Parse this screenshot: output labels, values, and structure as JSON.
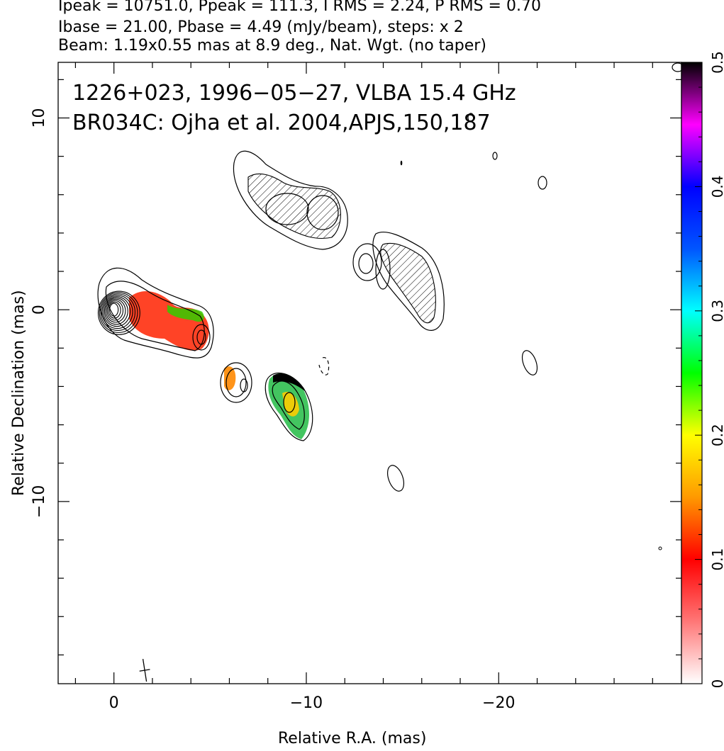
{
  "header": {
    "line1": "Ipeak = 10751.0, Ppeak = 111.3, I RMS = 2.24, P RMS = 0.70",
    "line2": "Ibase = 21.00, Pbase = 4.49 (mJy/beam), steps: x 2",
    "line3": "Beam: 1.19x0.55 mas at 8.9 deg., Nat. Wgt. (no taper)"
  },
  "chart_data": {
    "type": "heatmap",
    "annotations": [
      "1226+023, 1996−05−27, VLBA 15.4 GHz",
      "BR034C: Ojha et al. 2004,APJS,150,187"
    ],
    "xlabel": "Relative R.A. (mas)",
    "ylabel": "Relative Declination (mas)",
    "xlim": [
      2.9,
      -29.5
    ],
    "ylim": [
      -19.5,
      12.9
    ],
    "xticks": [
      0,
      -10,
      -20
    ],
    "xtick_labels": [
      "0",
      "−10",
      "−20"
    ],
    "yticks": [
      10,
      0,
      -10
    ],
    "ytick_labels": [
      "10",
      "0",
      "−10"
    ],
    "colorbar": {
      "range": [
        0,
        0.5
      ],
      "ticks": [
        0,
        0.1,
        0.2,
        0.3,
        0.4,
        0.5
      ],
      "tick_labels": [
        "0",
        "0.1",
        "0.2",
        "0.3",
        "0.4",
        "0.5"
      ]
    },
    "beam": {
      "major_mas": 1.19,
      "minor_mas": 0.55,
      "pa_deg": 8.9,
      "center": [
        -1.6,
        -18.8
      ]
    },
    "core": {
      "x": 0,
      "y": 0,
      "ncontours": 10
    },
    "fractional_pol_regions": [
      {
        "x": -2.0,
        "y": -0.8,
        "value": 0.1
      },
      {
        "x": -3.6,
        "y": -0.9,
        "value": 0.22
      },
      {
        "x": -4.5,
        "y": -1.8,
        "value": 0.12
      },
      {
        "x": -6.1,
        "y": -4.1,
        "value": 0.1
      },
      {
        "x": -9.2,
        "y": -5.5,
        "value": 0.24
      }
    ]
  }
}
